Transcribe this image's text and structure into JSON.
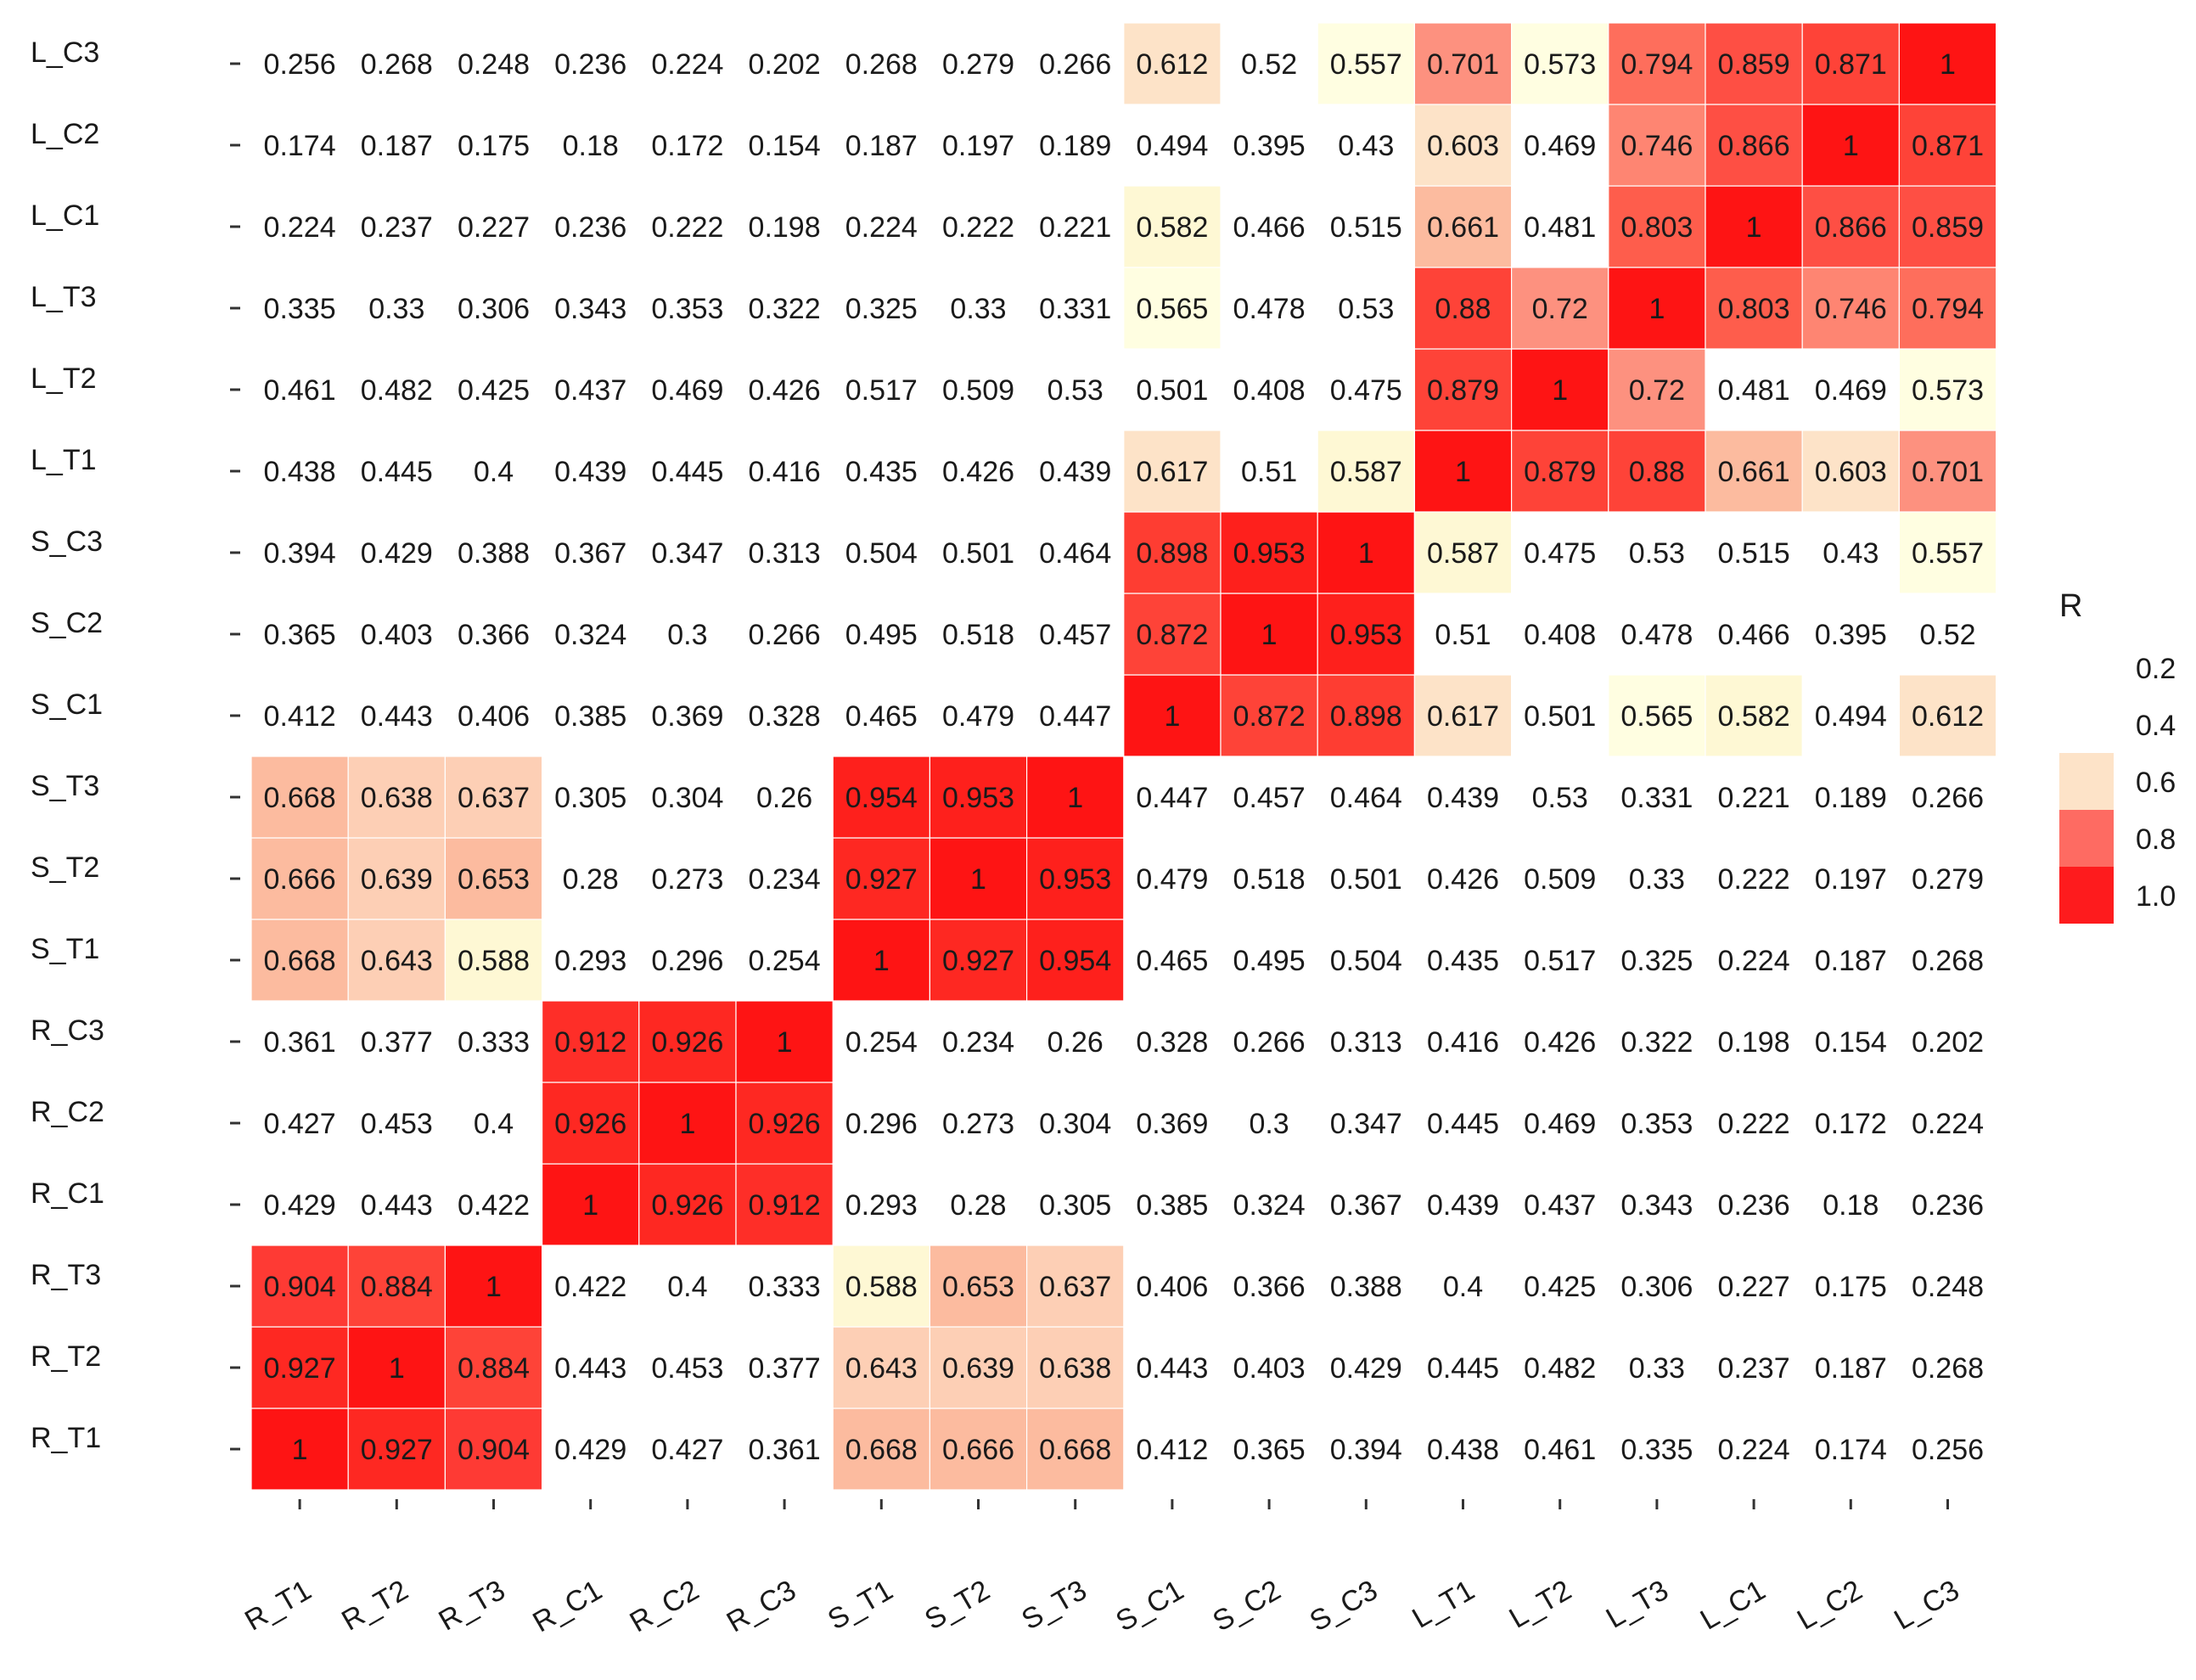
{
  "chart_data": {
    "type": "heatmap",
    "title": "",
    "xlabel": "",
    "ylabel": "",
    "x_categories": [
      "R_T1",
      "R_T2",
      "R_T3",
      "R_C1",
      "R_C2",
      "R_C3",
      "S_T1",
      "S_T2",
      "S_T3",
      "S_C1",
      "S_C2",
      "S_C3",
      "L_T1",
      "L_T2",
      "L_T3",
      "L_C1",
      "L_C2",
      "L_C3"
    ],
    "y_categories": [
      "R_T1",
      "R_T2",
      "R_T3",
      "R_C1",
      "R_C2",
      "R_C3",
      "S_T1",
      "S_T2",
      "S_T3",
      "S_C1",
      "S_C2",
      "S_C3",
      "L_T1",
      "L_T2",
      "L_T3",
      "L_C1",
      "L_C2",
      "L_C3"
    ],
    "y_order": "bottom-to-top",
    "values": [
      [
        1,
        0.927,
        0.904,
        0.429,
        0.427,
        0.361,
        0.668,
        0.666,
        0.668,
        0.412,
        0.365,
        0.394,
        0.438,
        0.461,
        0.335,
        0.224,
        0.174,
        0.256
      ],
      [
        0.927,
        1,
        0.884,
        0.443,
        0.453,
        0.377,
        0.643,
        0.639,
        0.638,
        0.443,
        0.403,
        0.429,
        0.445,
        0.482,
        0.33,
        0.237,
        0.187,
        0.268
      ],
      [
        0.904,
        0.884,
        1,
        0.422,
        0.4,
        0.333,
        0.588,
        0.653,
        0.637,
        0.406,
        0.366,
        0.388,
        0.4,
        0.425,
        0.306,
        0.227,
        0.175,
        0.248
      ],
      [
        0.429,
        0.443,
        0.422,
        1,
        0.926,
        0.912,
        0.293,
        0.28,
        0.305,
        0.385,
        0.324,
        0.367,
        0.439,
        0.437,
        0.343,
        0.236,
        0.18,
        0.236
      ],
      [
        0.427,
        0.453,
        0.4,
        0.926,
        1,
        0.926,
        0.296,
        0.273,
        0.304,
        0.369,
        0.3,
        0.347,
        0.445,
        0.469,
        0.353,
        0.222,
        0.172,
        0.224
      ],
      [
        0.361,
        0.377,
        0.333,
        0.912,
        0.926,
        1,
        0.254,
        0.234,
        0.26,
        0.328,
        0.266,
        0.313,
        0.416,
        0.426,
        0.322,
        0.198,
        0.154,
        0.202
      ],
      [
        0.668,
        0.643,
        0.588,
        0.293,
        0.296,
        0.254,
        1,
        0.927,
        0.954,
        0.465,
        0.495,
        0.504,
        0.435,
        0.517,
        0.325,
        0.224,
        0.187,
        0.268
      ],
      [
        0.666,
        0.639,
        0.653,
        0.28,
        0.273,
        0.234,
        0.927,
        1,
        0.953,
        0.479,
        0.518,
        0.501,
        0.426,
        0.509,
        0.33,
        0.222,
        0.197,
        0.279
      ],
      [
        0.668,
        0.638,
        0.637,
        0.305,
        0.304,
        0.26,
        0.954,
        0.953,
        1,
        0.447,
        0.457,
        0.464,
        0.439,
        0.53,
        0.331,
        0.221,
        0.189,
        0.266
      ],
      [
        0.412,
        0.443,
        0.406,
        0.385,
        0.369,
        0.328,
        0.465,
        0.479,
        0.447,
        1,
        0.872,
        0.898,
        0.617,
        0.501,
        0.565,
        0.582,
        0.494,
        0.612
      ],
      [
        0.365,
        0.403,
        0.366,
        0.324,
        0.3,
        0.266,
        0.495,
        0.518,
        0.457,
        0.872,
        1,
        0.953,
        0.51,
        0.408,
        0.478,
        0.466,
        0.395,
        0.52
      ],
      [
        0.394,
        0.429,
        0.388,
        0.367,
        0.347,
        0.313,
        0.504,
        0.501,
        0.464,
        0.898,
        0.953,
        1,
        0.587,
        0.475,
        0.53,
        0.515,
        0.43,
        0.557
      ],
      [
        0.438,
        0.445,
        0.4,
        0.439,
        0.445,
        0.416,
        0.435,
        0.426,
        0.439,
        0.617,
        0.51,
        0.587,
        1,
        0.879,
        0.88,
        0.661,
        0.603,
        0.701
      ],
      [
        0.461,
        0.482,
        0.425,
        0.437,
        0.469,
        0.426,
        0.517,
        0.509,
        0.53,
        0.501,
        0.408,
        0.475,
        0.879,
        1,
        0.72,
        0.481,
        0.469,
        0.573
      ],
      [
        0.335,
        0.33,
        0.306,
        0.343,
        0.353,
        0.322,
        0.325,
        0.33,
        0.331,
        0.565,
        0.478,
        0.53,
        0.88,
        0.72,
        1,
        0.803,
        0.746,
        0.794
      ],
      [
        0.224,
        0.237,
        0.227,
        0.236,
        0.222,
        0.198,
        0.224,
        0.222,
        0.221,
        0.582,
        0.466,
        0.515,
        0.661,
        0.481,
        0.803,
        1,
        0.866,
        0.859
      ],
      [
        0.174,
        0.187,
        0.175,
        0.18,
        0.172,
        0.154,
        0.187,
        0.197,
        0.189,
        0.494,
        0.395,
        0.43,
        0.603,
        0.469,
        0.746,
        0.866,
        1,
        0.871
      ],
      [
        0.256,
        0.268,
        0.248,
        0.236,
        0.224,
        0.202,
        0.268,
        0.279,
        0.266,
        0.612,
        0.52,
        0.557,
        0.701,
        0.573,
        0.794,
        0.859,
        0.871,
        1
      ]
    ],
    "color_scale": {
      "legend_title": "R",
      "ticks": [
        0.2,
        0.4,
        0.6,
        0.8,
        1.0
      ],
      "tick_labels": [
        "0.2",
        "0.4",
        "0.6",
        "0.8",
        "1.0"
      ],
      "legend_swatch_colors": [
        "#fde3c8",
        "#fe6b62",
        "#fe1b1d"
      ],
      "legend_position": "right",
      "cell_colors": [
        {
          "min": 0.545,
          "color": "#fffee1"
        },
        {
          "min": 0.575,
          "color": "#fef8d4"
        },
        {
          "min": 0.59,
          "color": "#fde3c8"
        },
        {
          "min": 0.63,
          "color": "#fdcfb5"
        },
        {
          "min": 0.65,
          "color": "#fcbb9f"
        },
        {
          "min": 0.68,
          "color": "#fd917f"
        },
        {
          "min": 0.73,
          "color": "#fe8572"
        },
        {
          "min": 0.77,
          "color": "#fe6e5c"
        },
        {
          "min": 0.8,
          "color": "#fe5d4c"
        },
        {
          "min": 0.85,
          "color": "#fe4f44"
        },
        {
          "min": 0.87,
          "color": "#fe4338"
        },
        {
          "min": 0.885,
          "color": "#fe3d32"
        },
        {
          "min": 0.9,
          "color": "#fe3a34"
        },
        {
          "min": 0.91,
          "color": "#fe2e28"
        },
        {
          "min": 0.92,
          "color": "#fe2822"
        },
        {
          "min": 0.95,
          "color": "#fe201c"
        },
        {
          "min": 0.99,
          "color": "#fe1414"
        }
      ],
      "blank_color": "#ffffff"
    }
  }
}
